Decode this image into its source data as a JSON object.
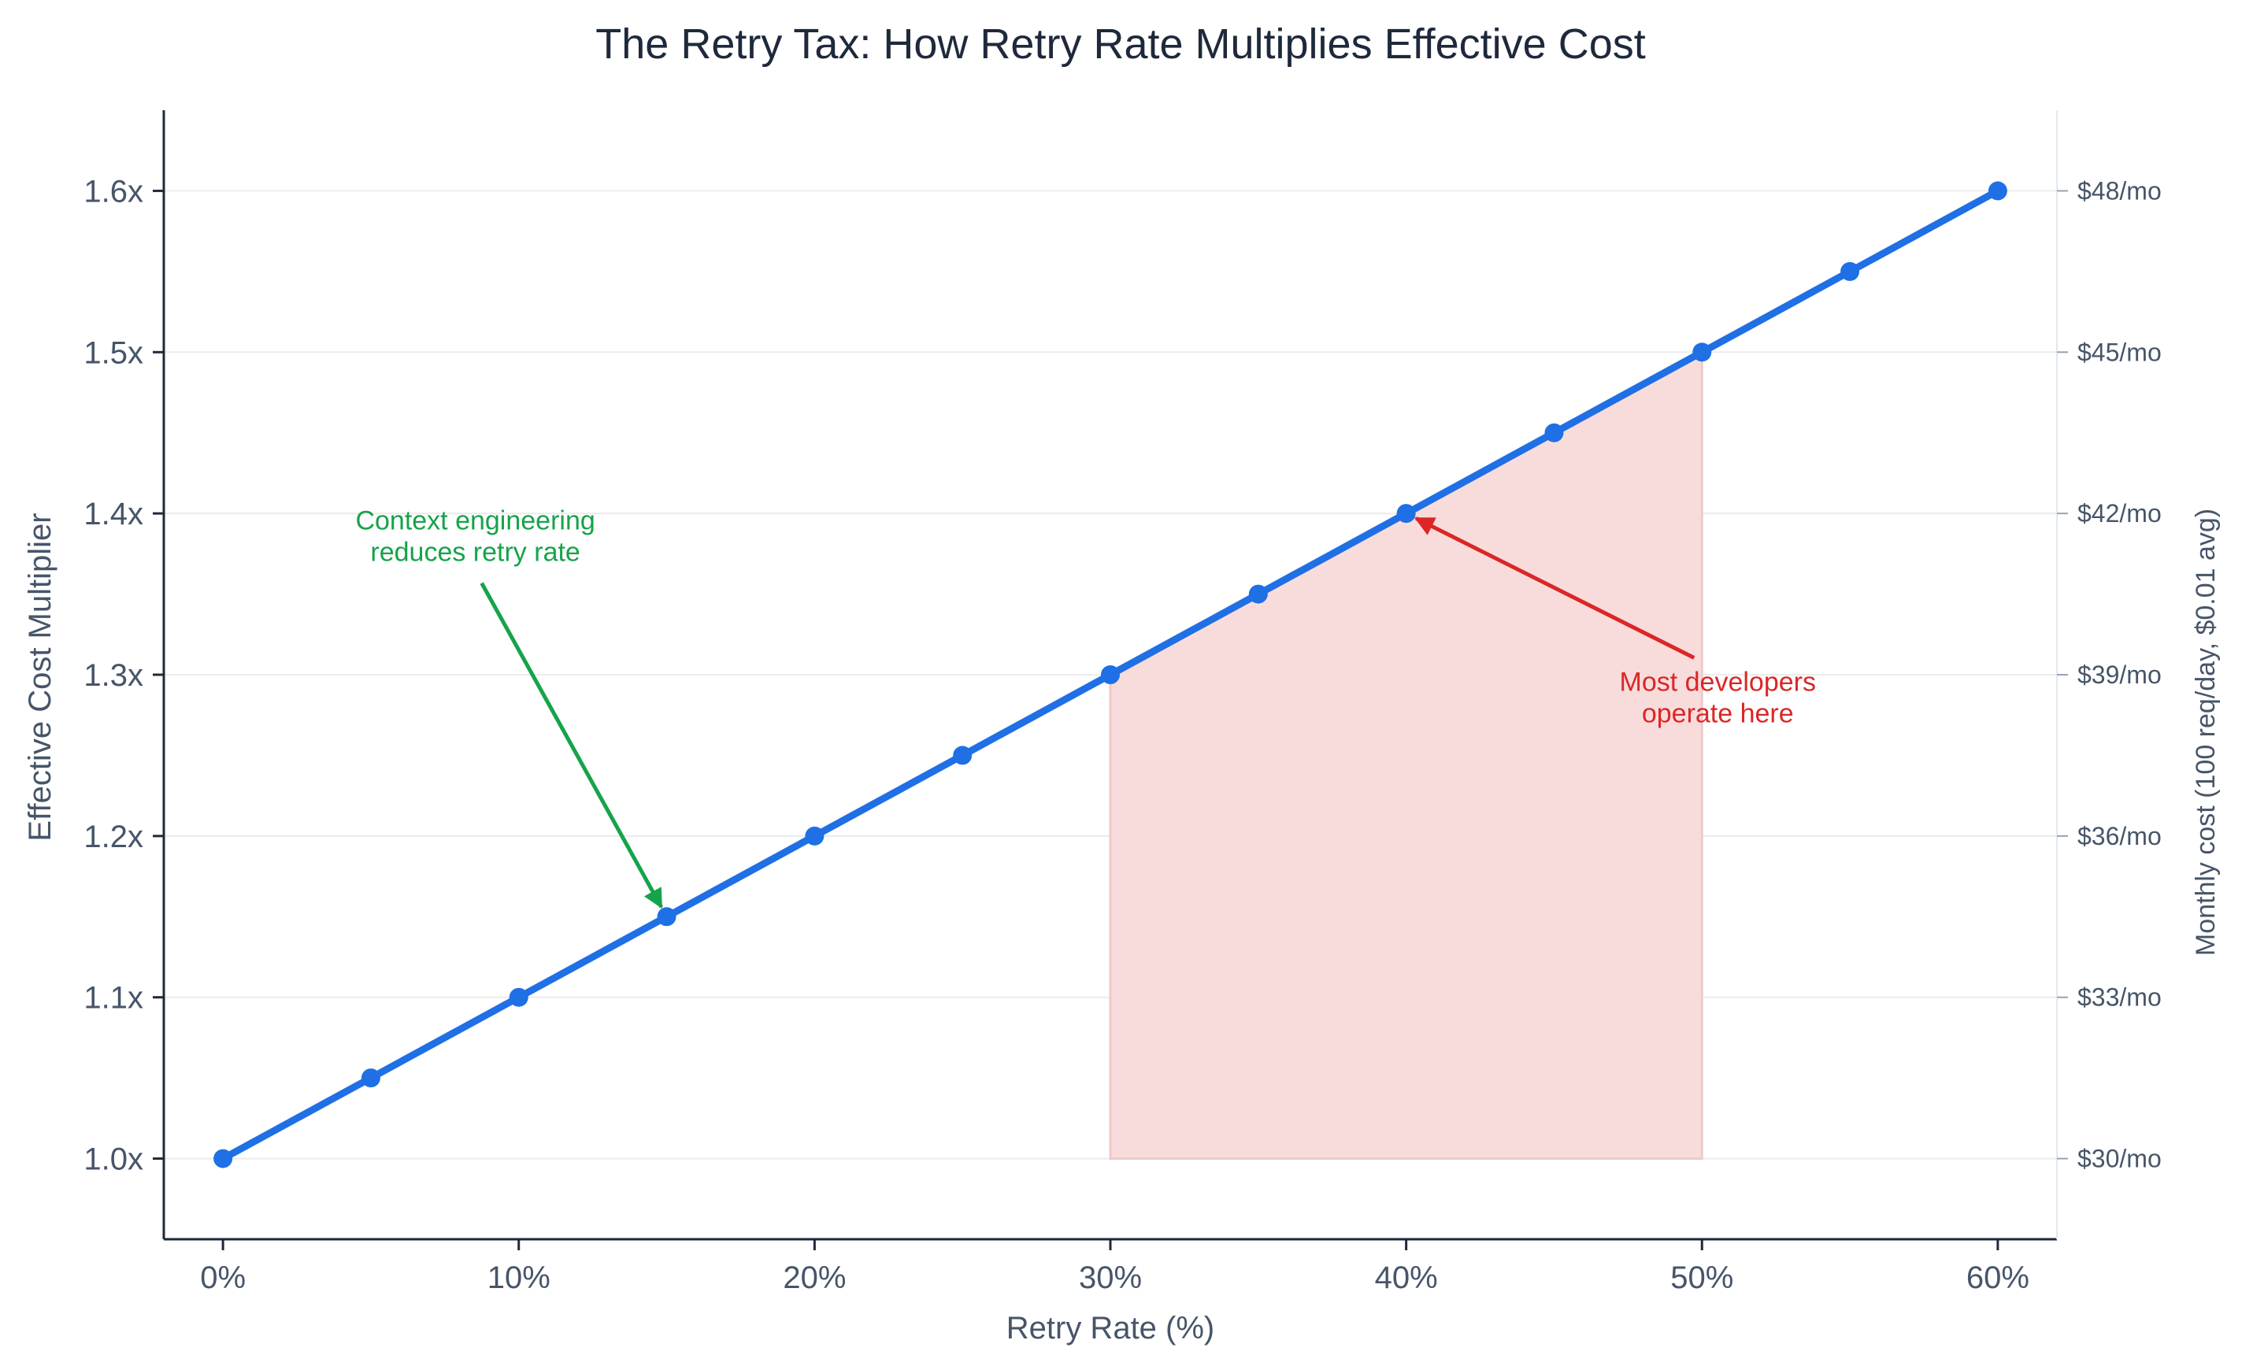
{
  "colors": {
    "line": "#1f6fe5",
    "shade": "#f8dcdc",
    "shade_edge": "#eecaca",
    "green": "#16a34a",
    "red": "#dc2626",
    "axis": "#1e293b",
    "grid": "#ececec",
    "text": "#475569",
    "title": "#1e293b"
  },
  "chart_data": {
    "type": "line",
    "title": "The Retry Tax: How Retry Rate Multiplies Effective Cost",
    "xlabel": "Retry Rate (%)",
    "ylabel": "Effective Cost Multiplier",
    "ylabel_right": "Monthly cost (100 req/day, $0.01 avg)",
    "x": [
      0,
      5,
      10,
      15,
      20,
      25,
      30,
      35,
      40,
      45,
      50,
      55,
      60
    ],
    "y": [
      1.0,
      1.05,
      1.1,
      1.15,
      1.2,
      1.25,
      1.3,
      1.35,
      1.4,
      1.45,
      1.5,
      1.55,
      1.6
    ],
    "xlim": [
      -2,
      62
    ],
    "ylim": [
      0.95,
      1.65
    ],
    "xticks": [
      0,
      10,
      20,
      30,
      40,
      50,
      60
    ],
    "xtick_labels": [
      "0%",
      "10%",
      "20%",
      "30%",
      "40%",
      "50%",
      "60%"
    ],
    "yticks": [
      1.0,
      1.1,
      1.2,
      1.3,
      1.4,
      1.5,
      1.6
    ],
    "ytick_labels": [
      "1.0x",
      "1.1x",
      "1.2x",
      "1.3x",
      "1.4x",
      "1.5x",
      "1.6x"
    ],
    "right_ylim": [
      28.5,
      49.5
    ],
    "right_yticks": [
      30,
      33,
      36,
      39,
      42,
      45,
      48
    ],
    "right_ytick_labels": [
      "$30/mo",
      "$33/mo",
      "$36/mo",
      "$39/mo",
      "$42/mo",
      "$45/mo",
      "$48/mo"
    ],
    "grid": "horizontal",
    "shaded_region": {
      "x_start": 30,
      "x_end": 50,
      "y_base": 1.0
    },
    "annotations": [
      {
        "lines": [
          "Context engineering",
          "reduces retry rate"
        ],
        "point": [
          15,
          1.15
        ],
        "text_anchor_point": [
          8,
          1.39
        ],
        "color": "green"
      },
      {
        "lines": [
          "Most developers",
          "operate here"
        ],
        "point": [
          40,
          1.4
        ],
        "text_anchor_point": [
          50,
          1.29
        ],
        "color": "red"
      }
    ]
  }
}
